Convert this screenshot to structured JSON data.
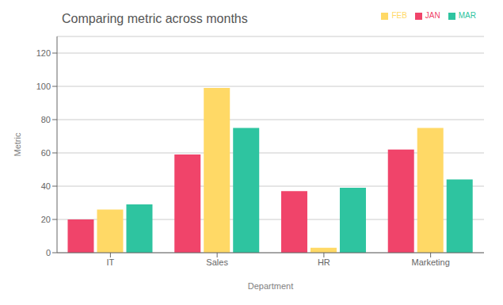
{
  "chart_data": {
    "type": "bar",
    "title": "Comparing metric across months",
    "xlabel": "Department",
    "ylabel": "Metric",
    "categories": [
      "IT",
      "Sales",
      "HR",
      "Marketing"
    ],
    "series": [
      {
        "name": "JAN",
        "values": [
          20,
          59,
          37,
          62
        ],
        "color": "#F0446A"
      },
      {
        "name": "FEB",
        "values": [
          26,
          99,
          3,
          75
        ],
        "color": "#FFD966"
      },
      {
        "name": "MAR",
        "values": [
          29,
          75,
          39,
          44
        ],
        "color": "#2EC4A0"
      }
    ],
    "ylim": [
      0,
      130
    ],
    "yticks": [
      0,
      20,
      40,
      60,
      80,
      100,
      120
    ],
    "grid": true,
    "legend": "upper right"
  }
}
